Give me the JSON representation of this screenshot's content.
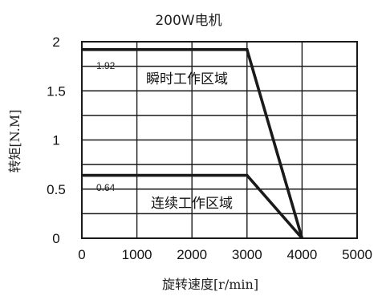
{
  "chart_data": {
    "type": "line",
    "title": "200W电机",
    "xlabel": "旋转速度[r/min]",
    "ylabel": "转矩[N.M]",
    "xlim": [
      0,
      5000
    ],
    "ylim": [
      0,
      2
    ],
    "x_ticks": [
      "0",
      "1000",
      "2000",
      "3000",
      "4000",
      "5000"
    ],
    "y_ticks": [
      "0",
      "0.5",
      "1",
      "1.5",
      "2"
    ],
    "grid": true,
    "series": [
      {
        "x": [
          0,
          3000,
          4000
        ],
        "y": [
          1.92,
          1.92,
          0
        ],
        "color": "#1a1a1a"
      },
      {
        "x": [
          0,
          3000,
          4000
        ],
        "y": [
          0.64,
          0.64,
          0
        ],
        "color": "#1a1a1a"
      }
    ],
    "annotations": [
      {
        "text": "1.92"
      },
      {
        "text": "0.64"
      },
      {
        "text": "瞬时工作区域"
      },
      {
        "text": "连续工作区域"
      }
    ]
  }
}
